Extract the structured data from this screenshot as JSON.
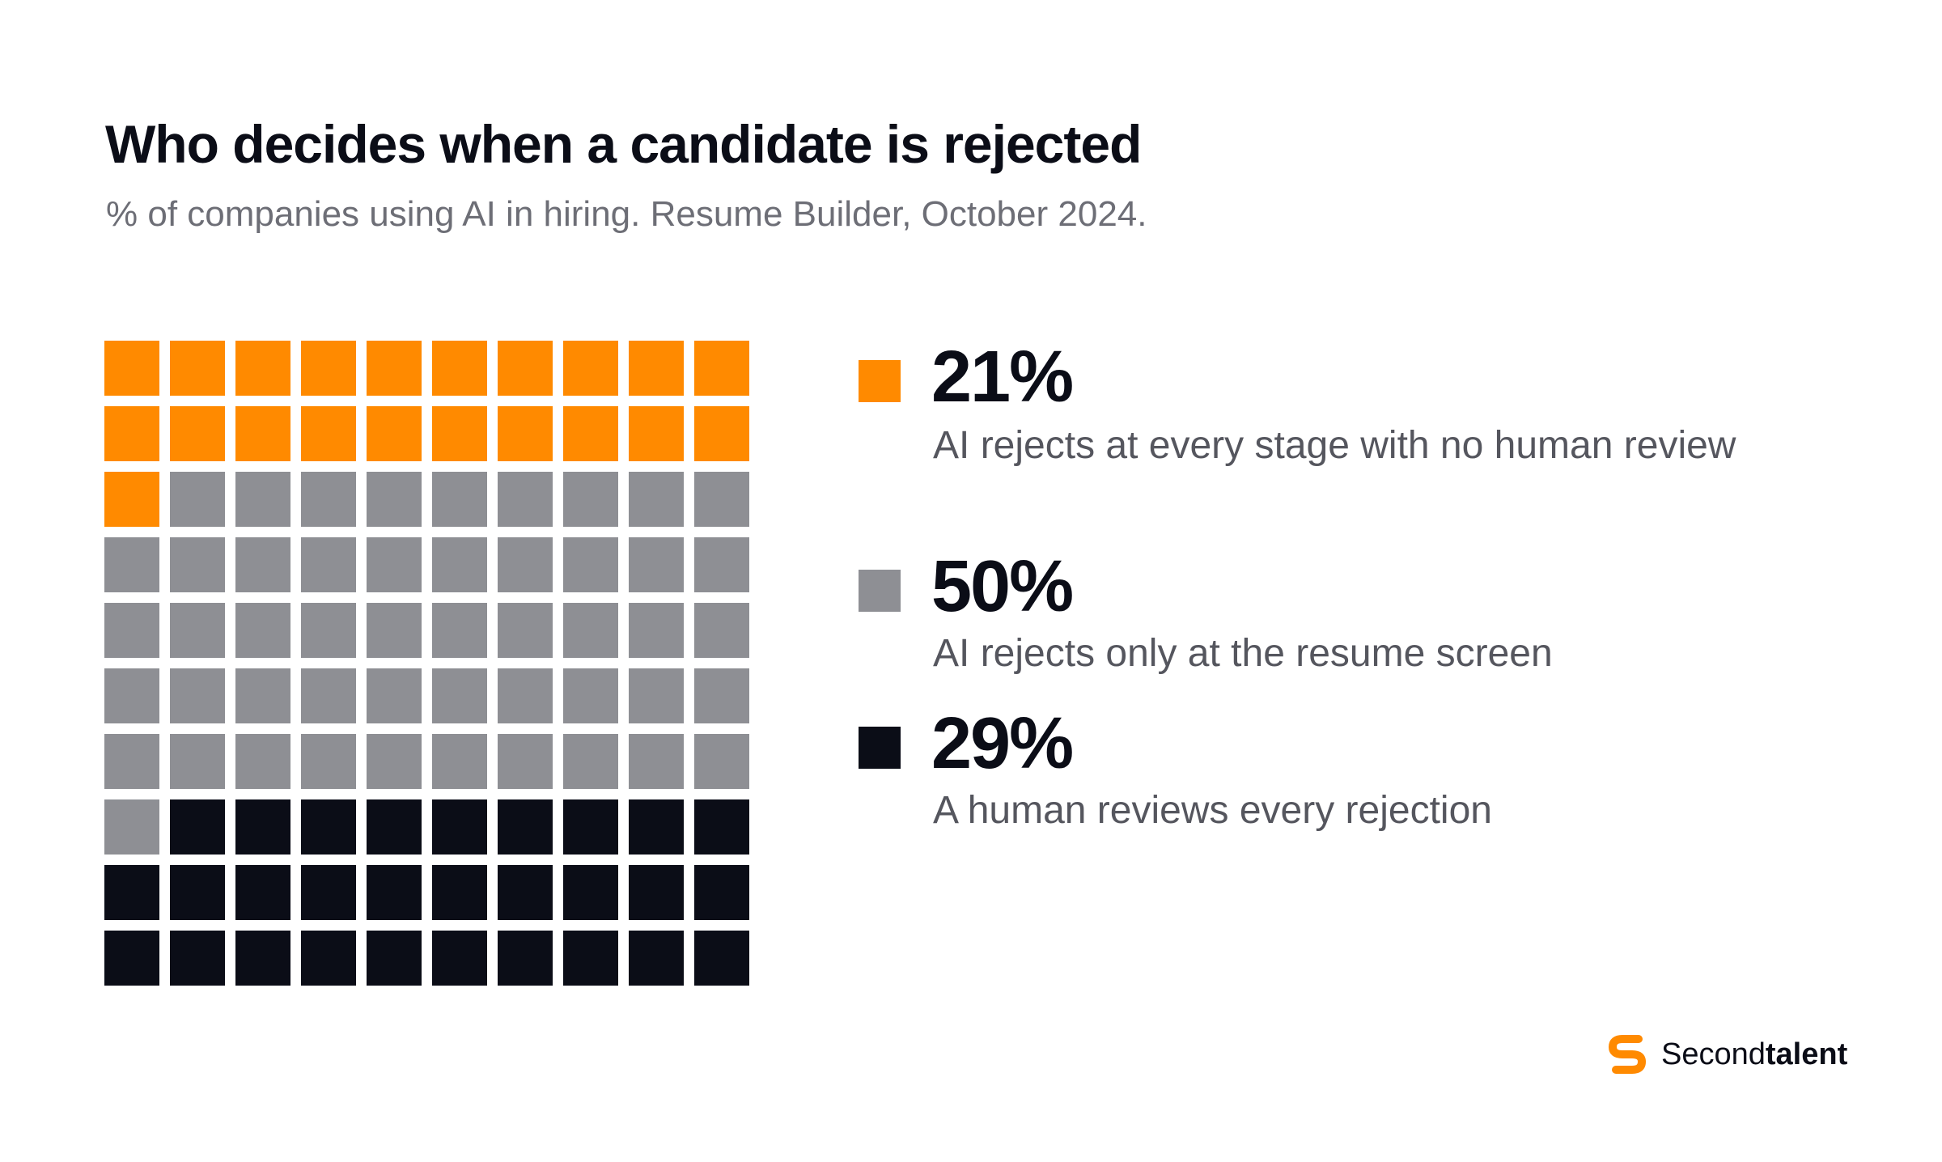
{
  "title": "Who decides when a candidate is rejected",
  "subtitle": "% of companies using AI in hiring. Resume Builder, October 2024.",
  "chart_data": {
    "type": "waffle",
    "grid": {
      "rows": 10,
      "cols": 10
    },
    "series": [
      {
        "name": "AI rejects at every stage with no human review",
        "value": 21,
        "label": "21%",
        "color": "#ff8a00"
      },
      {
        "name": "AI rejects only at the resume screen",
        "value": 50,
        "label": "50%",
        "color": "#8e8f94"
      },
      {
        "name": "A human reviews every rejection",
        "value": 29,
        "label": "29%",
        "color": "#0b0d17"
      }
    ]
  },
  "brand": {
    "name_regular": "Second",
    "name_bold": "talent",
    "logo_icon": "secondtalent-logo-icon",
    "logo_color": "#ff8a00"
  }
}
